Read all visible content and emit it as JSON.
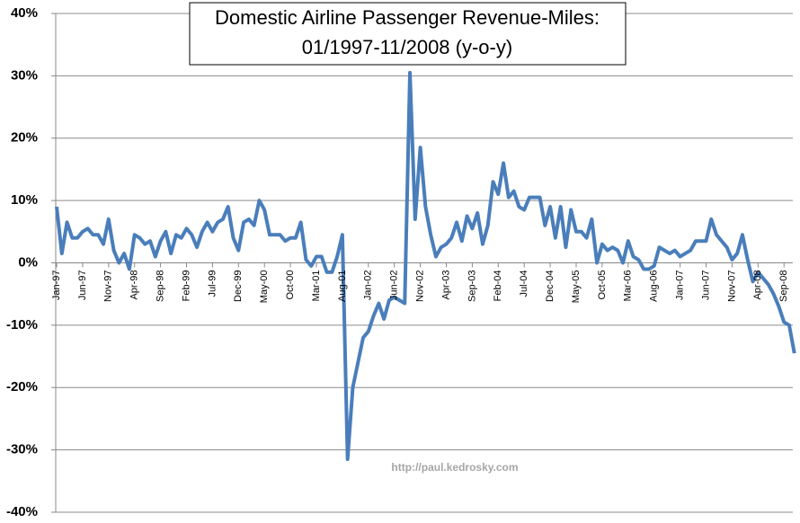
{
  "chart_data": {
    "type": "line",
    "title": [
      "Domestic Airline Passenger Revenue-Miles:",
      "01/1997-11/2008 (y-o-y)"
    ],
    "watermark": "http://paul.kedrosky.com",
    "categories": [
      "Jan-97",
      null,
      null,
      null,
      null,
      "Jun-97",
      null,
      null,
      null,
      null,
      "Nov-97",
      null,
      null,
      null,
      null,
      "Apr-98",
      null,
      null,
      null,
      null,
      "Sep-98",
      null,
      null,
      null,
      null,
      "Feb-99",
      null,
      null,
      null,
      null,
      "Jul-99",
      null,
      null,
      null,
      null,
      "Dec-99",
      null,
      null,
      null,
      null,
      "May-00",
      null,
      null,
      null,
      null,
      "Oct-00",
      null,
      null,
      null,
      null,
      "Mar-01",
      null,
      null,
      null,
      null,
      "Aug-01",
      null,
      null,
      null,
      null,
      "Jan-02",
      null,
      null,
      null,
      null,
      "Jun-02",
      null,
      null,
      null,
      null,
      "Nov-02",
      null,
      null,
      null,
      null,
      "Apr-03",
      null,
      null,
      null,
      null,
      "Sep-03",
      null,
      null,
      null,
      null,
      "Feb-04",
      null,
      null,
      null,
      null,
      "Jul-04",
      null,
      null,
      null,
      null,
      "Dec-04",
      null,
      null,
      null,
      null,
      "May-05",
      null,
      null,
      null,
      null,
      "Oct-05",
      null,
      null,
      null,
      null,
      "Mar-06",
      null,
      null,
      null,
      null,
      "Aug-06",
      null,
      null,
      null,
      null,
      "Jan-07",
      null,
      null,
      null,
      null,
      "Jun-07",
      null,
      null,
      null,
      null,
      "Nov-07",
      null,
      null,
      null,
      null,
      "Apr-08",
      null,
      null,
      null,
      null,
      "Sep-08",
      null,
      null
    ],
    "series": [
      {
        "color": "#4a7ebb",
        "values": [
          9,
          1.5,
          6.5,
          4,
          4,
          5,
          5.5,
          4.5,
          4.5,
          3,
          7,
          2,
          0,
          1.5,
          -1,
          4.5,
          4,
          3,
          3.5,
          1,
          3.5,
          5,
          1.5,
          4.5,
          4,
          5.5,
          4.5,
          2.5,
          5,
          6.5,
          5,
          6.5,
          7,
          9,
          4,
          2,
          6.5,
          7,
          6,
          10,
          8.5,
          4.5,
          4.5,
          4.5,
          3.5,
          4,
          4,
          6.5,
          0.5,
          -0.5,
          1,
          1,
          -1.5,
          -1.5,
          1,
          4.5,
          -31.5,
          -20,
          -16,
          -12,
          -11,
          -8.5,
          -6.5,
          -9,
          -6,
          -5.5,
          -6,
          -6.5,
          30.5,
          7,
          18.5,
          9,
          4.5,
          1,
          2.5,
          3,
          4,
          6.5,
          3.5,
          7.5,
          5.5,
          8,
          3,
          6,
          13,
          11,
          16,
          10.5,
          11.5,
          9,
          8.5,
          10.5,
          10.5,
          10.5,
          6,
          9,
          4,
          9,
          2.5,
          8.5,
          5,
          5,
          4,
          7,
          0,
          3,
          2,
          2.5,
          2,
          0,
          3.5,
          1,
          0.5,
          -1,
          -1,
          -0.5,
          2.5,
          2,
          1.5,
          2,
          1,
          1.5,
          2,
          3.5,
          3.5,
          3.5,
          7,
          4.5,
          3.5,
          2.5,
          0.5,
          1.5,
          4.5,
          0.5,
          -3,
          -1.5,
          -2.5,
          -3.5,
          -5,
          -7,
          -9.5,
          -10,
          -14.5
        ]
      }
    ],
    "ylim": [
      -40,
      40
    ],
    "yticks": [
      {
        "value": -40,
        "label": "-40%"
      },
      {
        "value": -30,
        "label": "-30%"
      },
      {
        "value": -20,
        "label": "-20%"
      },
      {
        "value": -10,
        "label": "-10%"
      },
      {
        "value": 0,
        "label": "0%"
      },
      {
        "value": 10,
        "label": "10%"
      },
      {
        "value": 20,
        "label": "20%"
      },
      {
        "value": 30,
        "label": "30%"
      },
      {
        "value": 40,
        "label": "40%"
      }
    ],
    "grid": true
  }
}
